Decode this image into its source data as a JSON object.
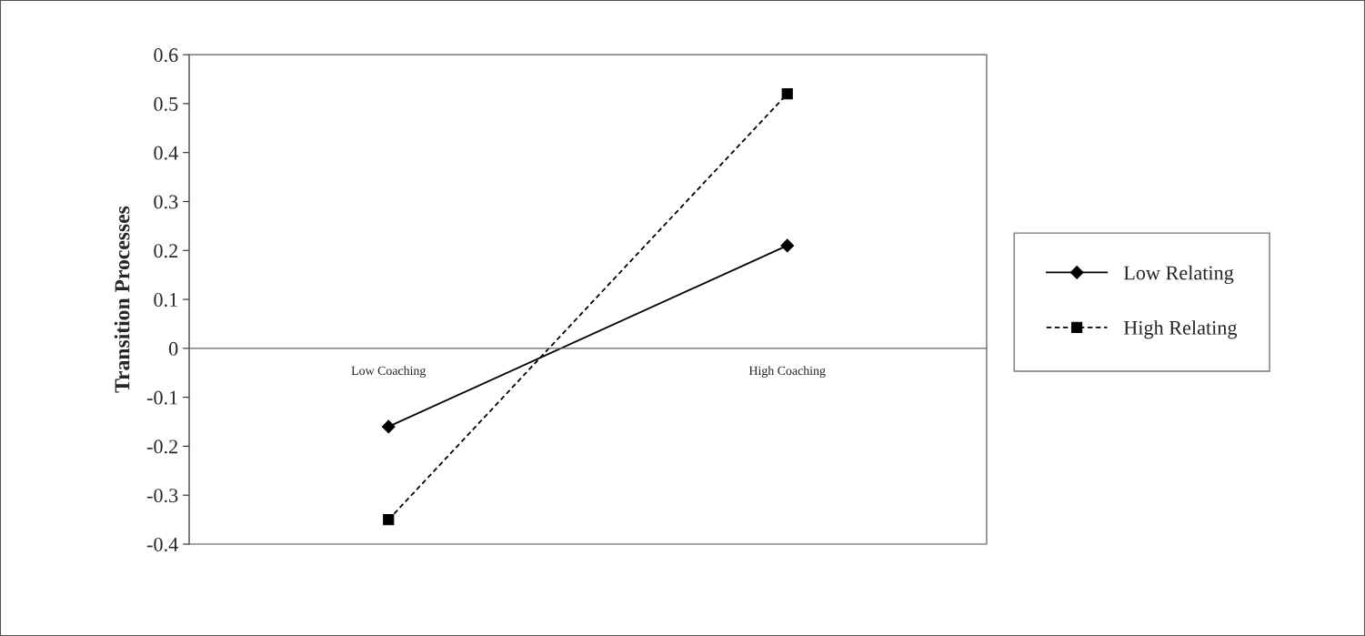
{
  "chart_data": {
    "type": "line",
    "ylabel": "Transition Processes",
    "categories": [
      "Low Coaching",
      "High Coaching"
    ],
    "series": [
      {
        "name": "Low Relating",
        "color": "#000000",
        "values": [
          -0.16,
          0.21
        ],
        "marker": "diamond",
        "line_style": "solid"
      },
      {
        "name": "High Relating",
        "color": "#000000",
        "values": [
          -0.35,
          0.52
        ],
        "marker": "square",
        "line_style": "dashed"
      }
    ],
    "ylim": [
      -0.4,
      0.6
    ],
    "yticks": [
      -0.4,
      -0.3,
      -0.2,
      -0.1,
      0,
      0.1,
      0.2,
      0.3,
      0.4,
      0.5,
      0.6
    ],
    "grid": false,
    "legend": "right"
  }
}
